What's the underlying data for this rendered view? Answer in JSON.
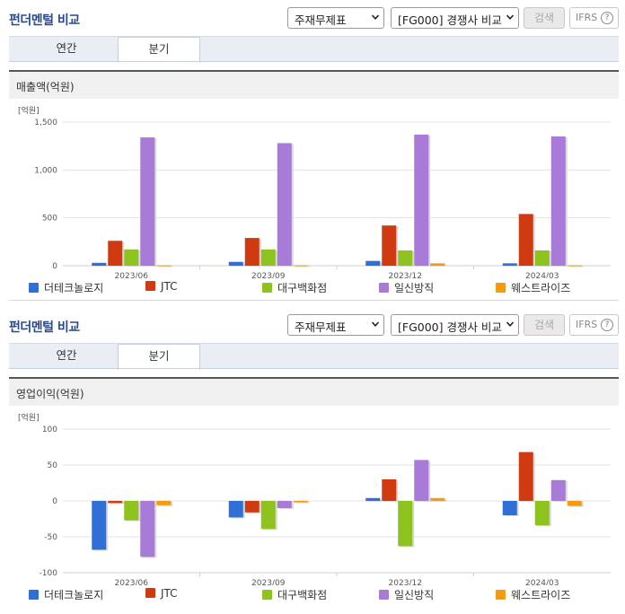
{
  "panels": [
    {
      "title": "펀더멘털 비교",
      "select_statement": "주재무제표",
      "select_peer": "[FG000] 경쟁사 비교",
      "search_label": "검색",
      "ifrs_label": "IFRS",
      "help_glyph": "?",
      "tabs": [
        "연간",
        "분기"
      ],
      "active_tab": "분기",
      "subtitle": "매출액(억원)",
      "legend": [
        {
          "label": "더테크놀로지",
          "color": "#2f6fd6"
        },
        {
          "label": "JTC",
          "color": "#d03a10"
        },
        {
          "label": "대구백화점",
          "color": "#8dc21f"
        },
        {
          "label": "일신방직",
          "color": "#a97bd8"
        },
        {
          "label": "웨스트라이즈",
          "color": "#f39c12"
        }
      ]
    },
    {
      "title": "펀더멘털 비교",
      "select_statement": "주재무제표",
      "select_peer": "[FG000] 경쟁사 비교",
      "search_label": "검색",
      "ifrs_label": "IFRS",
      "help_glyph": "?",
      "tabs": [
        "연간",
        "분기"
      ],
      "active_tab": "분기",
      "subtitle": "영업이익(억원)",
      "legend": [
        {
          "label": "더테크놀로지",
          "color": "#2f6fd6"
        },
        {
          "label": "JTC",
          "color": "#d03a10"
        },
        {
          "label": "대구백화점",
          "color": "#8dc21f"
        },
        {
          "label": "일신방직",
          "color": "#a97bd8"
        },
        {
          "label": "웨스트라이즈",
          "color": "#f39c12"
        }
      ]
    }
  ],
  "chart_data": [
    {
      "type": "bar",
      "unit_label": "[억원]",
      "categories": [
        "2023/06",
        "2023/09",
        "2023/12",
        "2024/03"
      ],
      "ylim": [
        0,
        1500
      ],
      "yticks": [
        0,
        500,
        1000,
        1500
      ],
      "ytick_labels": [
        "0",
        "500",
        "1,000",
        "1,500"
      ],
      "series": [
        {
          "name": "더테크놀로지",
          "color": "#2f6fd6",
          "values": [
            30,
            40,
            50,
            25
          ]
        },
        {
          "name": "JTC",
          "color": "#d03a10",
          "values": [
            260,
            290,
            420,
            540
          ]
        },
        {
          "name": "대구백화점",
          "color": "#8dc21f",
          "values": [
            170,
            170,
            160,
            160
          ]
        },
        {
          "name": "일신방직",
          "color": "#a97bd8",
          "values": [
            1340,
            1280,
            1370,
            1350
          ]
        },
        {
          "name": "웨스트라이즈",
          "color": "#f39c12",
          "values": [
            5,
            5,
            25,
            5
          ]
        }
      ]
    },
    {
      "type": "bar",
      "unit_label": "[억원]",
      "categories": [
        "2023/06",
        "2023/09",
        "2023/12",
        "2024/03"
      ],
      "ylim": [
        -100,
        100
      ],
      "yticks": [
        -100,
        -50,
        0,
        50,
        100
      ],
      "ytick_labels": [
        "-100",
        "-50",
        "0",
        "50",
        "100"
      ],
      "series": [
        {
          "name": "더테크놀로지",
          "color": "#2f6fd6",
          "values": [
            -68,
            -23,
            4,
            -20
          ]
        },
        {
          "name": "JTC",
          "color": "#d03a10",
          "values": [
            -3,
            -16,
            30,
            68
          ]
        },
        {
          "name": "대구백화점",
          "color": "#8dc21f",
          "values": [
            -27,
            -39,
            -63,
            -34
          ]
        },
        {
          "name": "일신방직",
          "color": "#a97bd8",
          "values": [
            -78,
            -10,
            57,
            29
          ]
        },
        {
          "name": "웨스트라이즈",
          "color": "#f39c12",
          "values": [
            -6,
            -2,
            4,
            -7
          ]
        }
      ]
    }
  ]
}
